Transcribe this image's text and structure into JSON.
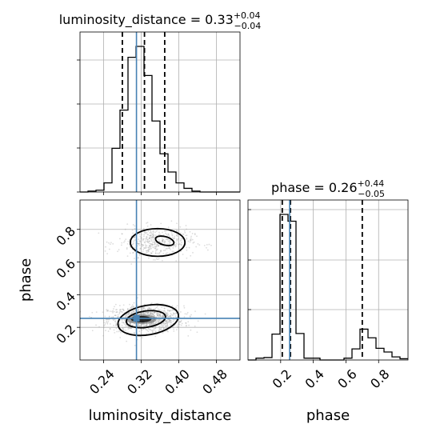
{
  "colors": {
    "truth": "#4682b4",
    "hist": "#000000",
    "quantile": "#000000",
    "grid": "#b0b0b0",
    "samples": "#9e9e9e"
  },
  "chart_data": {
    "type": "corner",
    "parameters": [
      "luminosity_distance",
      "phase"
    ],
    "truths": {
      "luminosity_distance": 0.31,
      "phase": 0.255
    },
    "panels": [
      {
        "id": "hist-luminosity_distance",
        "type": "histogram",
        "param": "luminosity_distance",
        "title": {
          "main": "luminosity_distance = 0.33",
          "upper": "+0.04",
          "lower": "−0.04"
        },
        "xlim": [
          0.19,
          0.53
        ],
        "bins": [
          0.19,
          0.207,
          0.224,
          0.241,
          0.258,
          0.275,
          0.292,
          0.309,
          0.326,
          0.343,
          0.36,
          0.377,
          0.394,
          0.411,
          0.428,
          0.445,
          0.462,
          0.479,
          0.496,
          0.513,
          0.53
        ],
        "counts": [
          0,
          1,
          2,
          10,
          48,
          90,
          148,
          160,
          128,
          78,
          42,
          22,
          10,
          4,
          1,
          0,
          0,
          0,
          0,
          0
        ],
        "quantiles": [
          0.28,
          0.327,
          0.37
        ],
        "grid": true
      },
      {
        "id": "hist-phase",
        "type": "histogram",
        "param": "phase",
        "title": {
          "main": "phase = 0.26",
          "upper": "+0.44",
          "lower": "−0.05"
        },
        "xlim": [
          0.0,
          0.98
        ],
        "bins": [
          0.0,
          0.049,
          0.098,
          0.147,
          0.196,
          0.245,
          0.294,
          0.343,
          0.392,
          0.441,
          0.49,
          0.539,
          0.588,
          0.637,
          0.686,
          0.735,
          0.784,
          0.833,
          0.882,
          0.931,
          0.98
        ],
        "counts": [
          0,
          3,
          4,
          42,
          236,
          225,
          43,
          3,
          3,
          0,
          0,
          0,
          3,
          18,
          50,
          36,
          19,
          13,
          5,
          2
        ],
        "quantiles": [
          0.21,
          0.26,
          0.7
        ],
        "grid": true
      },
      {
        "id": "scatter-2d",
        "type": "2d-density",
        "x": "luminosity_distance",
        "y": "phase",
        "xlim": [
          0.19,
          0.53
        ],
        "ylim": [
          0.0,
          0.98
        ],
        "xticks": [
          0.24,
          0.32,
          0.4,
          0.48
        ],
        "yticks": [
          0.2,
          0.4,
          0.6,
          0.8
        ],
        "xlabel": "luminosity_distance",
        "ylabel": "phase",
        "clusters": [
          {
            "x": 0.33,
            "y": 0.25,
            "sx": 0.04,
            "sy": 0.04,
            "n": 1100
          },
          {
            "x": 0.35,
            "y": 0.72,
            "sx": 0.04,
            "sy": 0.045,
            "n": 450
          }
        ],
        "contours": [
          {
            "level": "outer",
            "x": 0.335,
            "y": 0.245,
            "rx": 0.065,
            "ry": 0.09,
            "rot": -10
          },
          {
            "level": "inner",
            "x": 0.33,
            "y": 0.25,
            "rx": 0.042,
            "ry": 0.05,
            "rot": -8
          },
          {
            "level": "outer",
            "x": 0.355,
            "y": 0.72,
            "rx": 0.058,
            "ry": 0.085,
            "rot": 0
          },
          {
            "level": "inner",
            "x": 0.37,
            "y": 0.73,
            "rx": 0.02,
            "ry": 0.026,
            "rot": 15
          }
        ],
        "dense_core": [
          {
            "x": 0.32,
            "y": 0.25,
            "rx": 0.022,
            "ry": 0.02
          },
          {
            "x": 0.32,
            "y": 0.25,
            "rx": 0.033,
            "ry": 0.03
          }
        ],
        "grid": true
      }
    ],
    "phase_xticks": [
      0.2,
      0.4,
      0.6,
      0.8
    ],
    "phase_xlabel": "phase"
  }
}
